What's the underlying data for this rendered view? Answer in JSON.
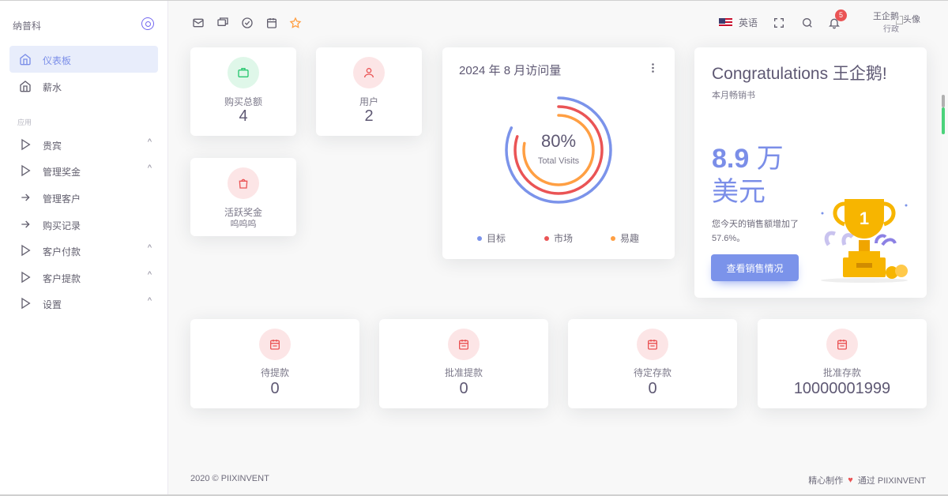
{
  "sidebar": {
    "brand": "纳普科",
    "items": [
      {
        "label": "仪表板"
      },
      {
        "label": "薪水"
      }
    ],
    "section_title": "应用",
    "app_items": [
      {
        "label": "贵宾"
      },
      {
        "label": "管理奖金"
      },
      {
        "label": "管理客户"
      },
      {
        "label": "购买记录"
      },
      {
        "label": "客户付款"
      },
      {
        "label": "客户提款"
      },
      {
        "label": "设置"
      }
    ]
  },
  "header": {
    "language": "英语",
    "notification_count": "5",
    "user_name": "王企鹅",
    "user_role": "行政",
    "avatar_alt": "头像"
  },
  "stats_top": [
    {
      "label": "购买总额",
      "value": "4",
      "color": "#28c76f"
    },
    {
      "label": "用户",
      "value": "2",
      "color": "#ea5455"
    },
    {
      "label": "活跃奖金",
      "sub": "呜呜呜",
      "color": "#ea5455"
    }
  ],
  "visits_card": {
    "title": "2024 年 8 月访问量",
    "percent": "80%",
    "caption": "Total Visits",
    "legend": [
      {
        "label": "目标",
        "color": "#7b93ea"
      },
      {
        "label": "市场",
        "color": "#ea5455"
      },
      {
        "label": "易趣",
        "color": "#ff9f43"
      }
    ],
    "chart_data": {
      "type": "radialBar",
      "series": [
        {
          "name": "目标",
          "value": 0.82,
          "color": "#7b93ea"
        },
        {
          "name": "市场",
          "value": 0.8,
          "color": "#ea5455"
        },
        {
          "name": "易趣",
          "value": 0.78,
          "color": "#ff9f43"
        }
      ]
    }
  },
  "congrats_card": {
    "title": "Congratulations 王企鹅!",
    "subtitle": "本月畅销书",
    "amount_number": "8.9",
    "amount_unit": "万",
    "amount_currency": "美元",
    "description": "您今天的销售额增加了57.6%。",
    "button": "查看销售情况"
  },
  "stats_bottom": [
    {
      "label": "待提款",
      "value": "0"
    },
    {
      "label": "批准提款",
      "value": "0"
    },
    {
      "label": "待定存款",
      "value": "0"
    },
    {
      "label": "批准存款",
      "value": "10000001999"
    }
  ],
  "footer": {
    "copyright": "2020 © PIIXINVENT",
    "made_with": "精心制作",
    "by": "通过 PIIXINVENT"
  }
}
